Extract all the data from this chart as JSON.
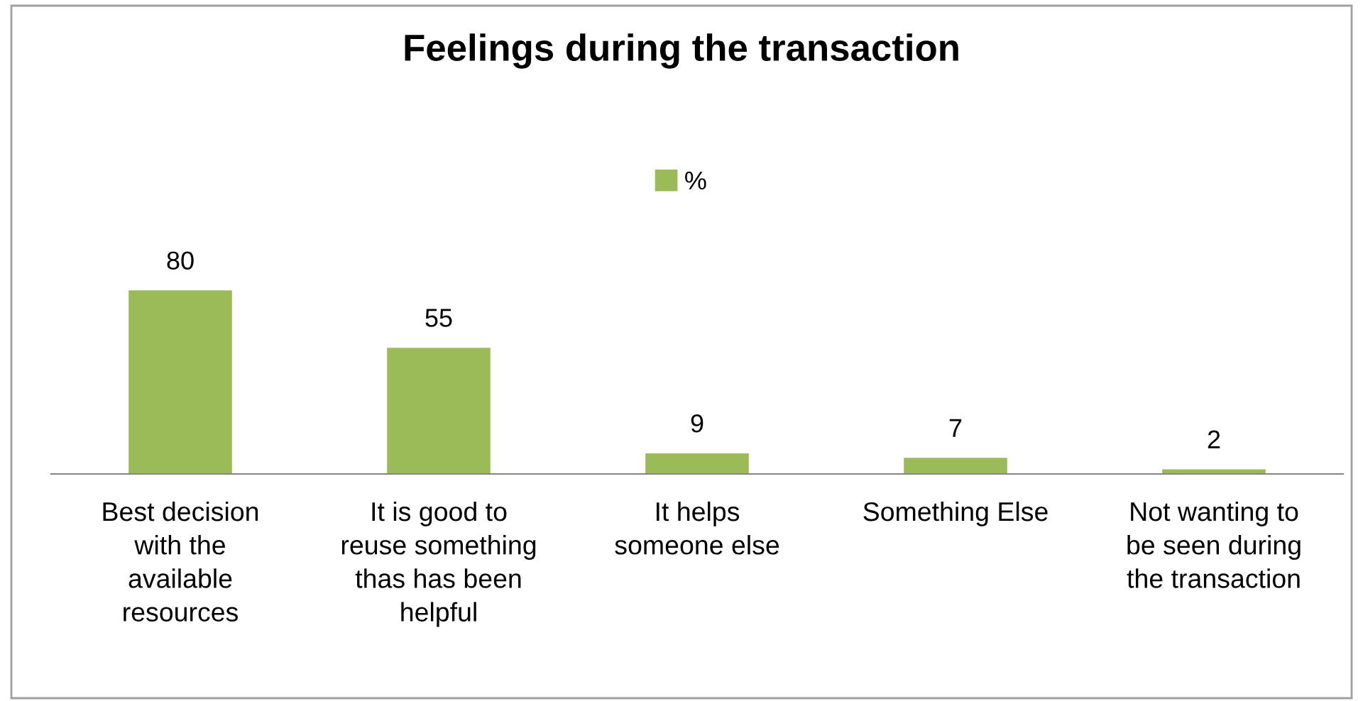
{
  "chart_data": {
    "type": "bar",
    "title": "Feelings during the transaction",
    "categories": [
      "Best decision\nwith the\navailable\nresources",
      "It is good to\nreuse something\nthas has been\nhelpful",
      "It helps\nsomeone else",
      "Something Else",
      "Not wanting to\nbe seen during\nthe transaction"
    ],
    "series": [
      {
        "name": "%",
        "color": "#9bbb59",
        "values": [
          80,
          55,
          9,
          7,
          2
        ]
      }
    ],
    "data_labels": true,
    "legend": "top",
    "grid": false
  }
}
